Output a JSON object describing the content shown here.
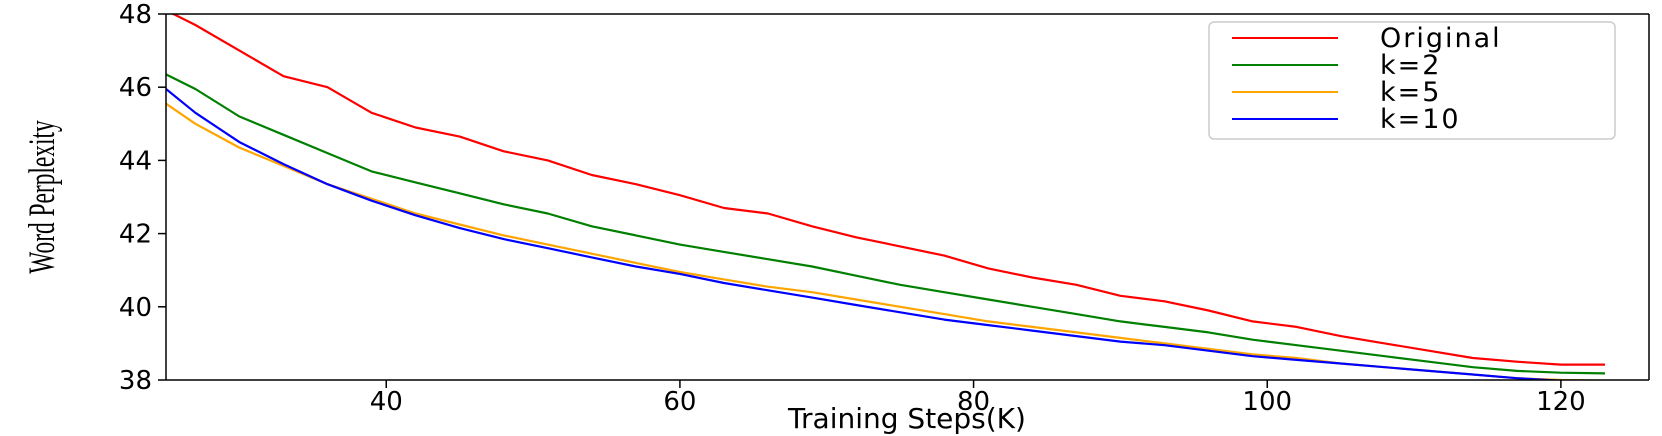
{
  "chart_data": {
    "type": "line",
    "xlabel": "Training Steps(K)",
    "ylabel": "Word Perplexity",
    "xlim": [
      25,
      126
    ],
    "ylim": [
      38,
      48
    ],
    "xticks": [
      40,
      60,
      80,
      100,
      120
    ],
    "yticks": [
      38,
      40,
      42,
      44,
      46,
      48
    ],
    "legend_position": "upper-right",
    "grid": false,
    "x": [
      25,
      27,
      30,
      33,
      36,
      39,
      42,
      45,
      48,
      51,
      54,
      57,
      60,
      63,
      66,
      69,
      72,
      75,
      78,
      81,
      84,
      87,
      90,
      93,
      96,
      99,
      102,
      105,
      108,
      111,
      114,
      117,
      120,
      123
    ],
    "series": [
      {
        "name": "Original",
        "color": "#ff0000",
        "values": [
          48.1,
          47.7,
          47.0,
          46.3,
          46.0,
          45.3,
          44.9,
          44.65,
          44.25,
          44.0,
          43.6,
          43.35,
          43.05,
          42.7,
          42.55,
          42.2,
          41.9,
          41.65,
          41.4,
          41.05,
          40.8,
          40.6,
          40.3,
          40.15,
          39.9,
          39.6,
          39.45,
          39.2,
          39.0,
          38.8,
          38.6,
          38.5,
          38.42,
          38.42
        ]
      },
      {
        "name": "k=2",
        "color": "#008000",
        "values": [
          46.35,
          45.95,
          45.2,
          44.7,
          44.2,
          43.7,
          43.4,
          43.1,
          42.8,
          42.55,
          42.2,
          41.95,
          41.7,
          41.5,
          41.3,
          41.1,
          40.85,
          40.6,
          40.4,
          40.2,
          40.0,
          39.8,
          39.6,
          39.45,
          39.3,
          39.1,
          38.95,
          38.8,
          38.65,
          38.5,
          38.35,
          38.25,
          38.2,
          38.18
        ]
      },
      {
        "name": "k=5",
        "color": "#ffa500",
        "values": [
          45.55,
          45.0,
          44.35,
          43.85,
          43.35,
          42.95,
          42.55,
          42.25,
          41.95,
          41.7,
          41.45,
          41.2,
          40.95,
          40.75,
          40.55,
          40.4,
          40.2,
          40.0,
          39.8,
          39.6,
          39.45,
          39.3,
          39.15,
          39.0,
          38.85,
          38.7,
          38.6,
          38.45,
          38.35,
          38.25,
          38.15,
          38.05,
          38.0,
          37.98
        ]
      },
      {
        "name": "k=10",
        "color": "#0000ff",
        "values": [
          45.95,
          45.3,
          44.5,
          43.9,
          43.35,
          42.9,
          42.5,
          42.15,
          41.85,
          41.6,
          41.35,
          41.1,
          40.9,
          40.65,
          40.45,
          40.25,
          40.05,
          39.85,
          39.65,
          39.5,
          39.35,
          39.2,
          39.05,
          38.95,
          38.8,
          38.65,
          38.55,
          38.45,
          38.35,
          38.25,
          38.15,
          38.05,
          37.98,
          37.95
        ]
      }
    ]
  }
}
